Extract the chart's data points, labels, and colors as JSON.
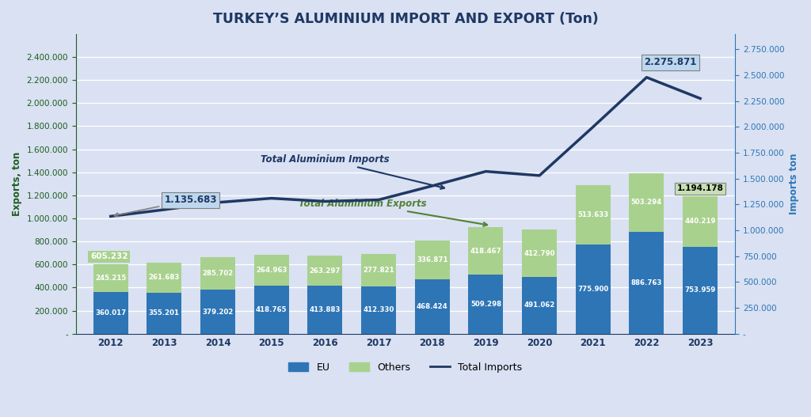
{
  "title": "TURKEY’S ALUMINIUM IMPORT AND EXPORT (Ton)",
  "years": [
    2012,
    2013,
    2014,
    2015,
    2016,
    2017,
    2018,
    2019,
    2020,
    2021,
    2022,
    2023
  ],
  "eu_exports": [
    360017,
    355201,
    379202,
    418765,
    413883,
    412330,
    468424,
    509298,
    491062,
    775900,
    886763,
    753959
  ],
  "others_exports": [
    245215,
    261683,
    285702,
    264963,
    263297,
    277821,
    336871,
    418467,
    412790,
    513633,
    503294,
    440219
  ],
  "total_imports": [
    1135683,
    1200000,
    1270000,
    1310000,
    1280000,
    1295000,
    1430000,
    1570000,
    1530000,
    2000000,
    2480000,
    2275871
  ],
  "total_exports": [
    605232,
    616884,
    664904,
    683728,
    677180,
    690151,
    805295,
    927765,
    903852,
    1289533,
    1390057,
    1194178
  ],
  "left_ylabel": "Exports, ton",
  "right_ylabel": "Imports ton",
  "ylim_left": [
    0,
    2600000
  ],
  "ylim_right": [
    0,
    2900000
  ],
  "left_yticks": [
    0,
    200000,
    400000,
    600000,
    800000,
    1000000,
    1200000,
    1400000,
    1600000,
    1800000,
    2000000,
    2200000,
    2400000
  ],
  "right_yticks": [
    0,
    250000,
    500000,
    750000,
    1000000,
    1250000,
    1500000,
    1750000,
    2000000,
    2250000,
    2500000,
    2750000
  ],
  "eu_color": "#2E75B6",
  "others_color": "#A9D18E",
  "imports_line_color": "#1F3864",
  "title_color": "#1F3864",
  "left_tick_color": "#1F5C1F",
  "right_tick_color": "#2E75B6",
  "left_label_color": "#1F5C1F",
  "right_label_color": "#2E75B6",
  "bar_text_color": "#FFFFFF",
  "grid_color": "#FFFFFF",
  "bg_color": "#D9E1F2",
  "annotation_import_box_color": "#BDD7EE",
  "annotation_export_box_color": "#C6E0B4",
  "annotation_import_text_color": "#1F3864",
  "annotation_export_text_color": "#538135",
  "imports_label_color": "#1F3864",
  "exports_label_color": "#538135",
  "total_export_2012_label": "605.232",
  "total_export_2023_label": "1.194.178",
  "import_2012_label": "1.135.683",
  "import_2022_label": "2.275.871",
  "xaxis_color": "#1F3864"
}
